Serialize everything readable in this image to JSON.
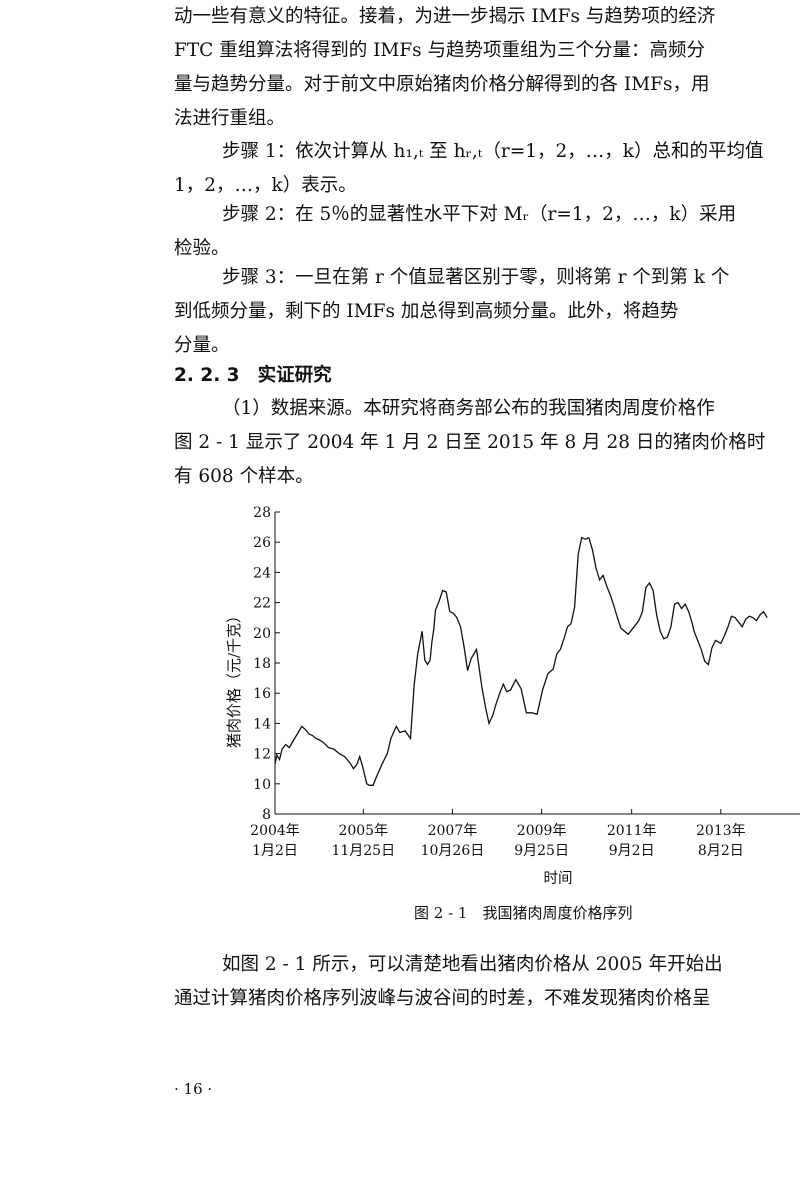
{
  "paragraphs": {
    "intro": [
      "动一些有意义的特征。接着，为进一步揭示 IMFs 与趋势项的经济",
      "FTC 重组算法将得到的 IMFs 与趋势项重组为三个分量：高频分",
      "量与趋势分量。对于前文中原始猪肉价格分解得到的各 IMFs，用",
      "法进行重组。"
    ],
    "step1": [
      "步骤 1：依次计算从 h₁,ₜ 至 hᵣ,ₜ（r=1，2，…，k）总和的平均值",
      "1，2，…，k）表示。"
    ],
    "step2": [
      "步骤 2：在 5％的显著性水平下对 Mᵣ（r=1，2，…，k）采用",
      "检验。"
    ],
    "step3": [
      "步骤 3：一旦在第 r 个值显著区别于零，则将第 r 个到第 k 个",
      "到低频分量，剩下的 IMFs 加总得到高频分量。此外，将趋势",
      "分量。"
    ]
  },
  "section": {
    "number": "2. 2. 3",
    "title": "实证研究"
  },
  "data_para": [
    "（1）数据来源。本研究将商务部公布的我国猪肉周度价格作",
    "图 2 - 1 显示了 2004 年 1 月 2 日至 2015 年 8 月 28 日的猪肉价格时",
    "有 608 个样本。"
  ],
  "figure_caption": "图 2 - 1　我国猪肉周度价格序列",
  "after_para": [
    "如图 2 - 1 所示，可以清楚地看出猪肉价格从 2005 年开始出",
    "通过计算猪肉价格序列波峰与波谷间的时差，不难发现猪肉价格呈"
  ],
  "page_number": "· 16 ·",
  "chart_data": {
    "type": "line",
    "ylabel": "猪肉价格（元/千克）",
    "xlabel": "时间",
    "ylim": [
      8,
      28
    ],
    "yticks": [
      8,
      10,
      12,
      14,
      16,
      18,
      20,
      22,
      24,
      26,
      28
    ],
    "xticks": [
      {
        "year": "2004年",
        "date": "1月2日",
        "index": 0
      },
      {
        "year": "2005年",
        "date": "11月25日",
        "index": 99
      },
      {
        "year": "2007年",
        "date": "10月26日",
        "index": 199
      },
      {
        "year": "2009年",
        "date": "9月25日",
        "index": 299
      },
      {
        "year": "2011年",
        "date": "9月2日",
        "index": 400
      },
      {
        "year": "2013年",
        "date": "8月2日",
        "index": 500
      }
    ],
    "series": [
      {
        "x": [
          0,
          2,
          5,
          8,
          12,
          16,
          20,
          25,
          30,
          34,
          38,
          42,
          46,
          50,
          55,
          60,
          66,
          72,
          78,
          84,
          88,
          92,
          95,
          98,
          100,
          103,
          106,
          110,
          114,
          120,
          126,
          130,
          136,
          140,
          146,
          152,
          156,
          160,
          165,
          168,
          171,
          174,
          176,
          178,
          180,
          184,
          188,
          192,
          196,
          200,
          204,
          208,
          212,
          216,
          220,
          226,
          232,
          236,
          240,
          244,
          248,
          252,
          256,
          260,
          264,
          270,
          276,
          282,
          288,
          294,
          300,
          306,
          312,
          316,
          320,
          324,
          328,
          332,
          336,
          340,
          344,
          348,
          352,
          356,
          360,
          364,
          368,
          372,
          376,
          380,
          384,
          388,
          392,
          396,
          400,
          404,
          408,
          412,
          416,
          420,
          424,
          428,
          432,
          436,
          440,
          444,
          448,
          452,
          456,
          460,
          464,
          468,
          470,
          474,
          478,
          482,
          486,
          490,
          494,
          500,
          504,
          508,
          512,
          516,
          520,
          524,
          528,
          532,
          536,
          540,
          544,
          548,
          552
        ],
        "y": [
          11.3,
          11.9,
          11.6,
          12.3,
          12.6,
          12.4,
          12.8,
          13.3,
          13.8,
          13.6,
          13.3,
          13.2,
          13.0,
          12.9,
          12.7,
          12.4,
          12.3,
          12.0,
          11.8,
          11.4,
          11.0,
          11.3,
          11.8,
          11.2,
          10.7,
          10.0,
          9.9,
          9.9,
          10.5,
          11.3,
          12.0,
          13.0,
          13.8,
          13.4,
          13.5,
          13.0,
          16.5,
          18.6,
          20.1,
          18.2,
          17.9,
          18.2,
          19.4,
          20.2,
          21.5,
          22.1,
          22.8,
          22.7,
          21.4,
          21.3,
          21.0,
          20.4,
          19.1,
          17.5,
          18.3,
          18.9,
          16.4,
          15.1,
          14.0,
          14.5,
          15.3,
          16.0,
          16.6,
          16.1,
          16.2,
          16.9,
          16.3,
          14.7,
          14.7,
          14.6,
          16.2,
          17.3,
          17.6,
          18.6,
          18.9,
          19.6,
          20.4,
          20.6,
          21.7,
          25.2,
          26.3,
          26.2,
          26.3,
          25.5,
          24.3,
          23.5,
          23.8,
          23.1,
          22.5,
          21.8,
          21.0,
          20.3,
          20.1,
          19.9,
          20.2,
          20.5,
          20.8,
          21.4,
          23.0,
          23.3,
          22.8,
          21.2,
          20.1,
          19.6,
          19.7,
          20.4,
          21.9,
          22.0,
          21.6,
          21.9,
          21.4,
          20.6,
          20.1,
          19.5,
          18.9,
          18.1,
          17.9,
          19.0,
          19.5,
          19.3,
          19.8,
          20.4,
          21.1,
          21.0,
          20.7,
          20.4,
          20.9,
          21.1,
          21.0,
          20.8,
          21.2,
          21.4,
          21.0
        ]
      }
    ]
  }
}
